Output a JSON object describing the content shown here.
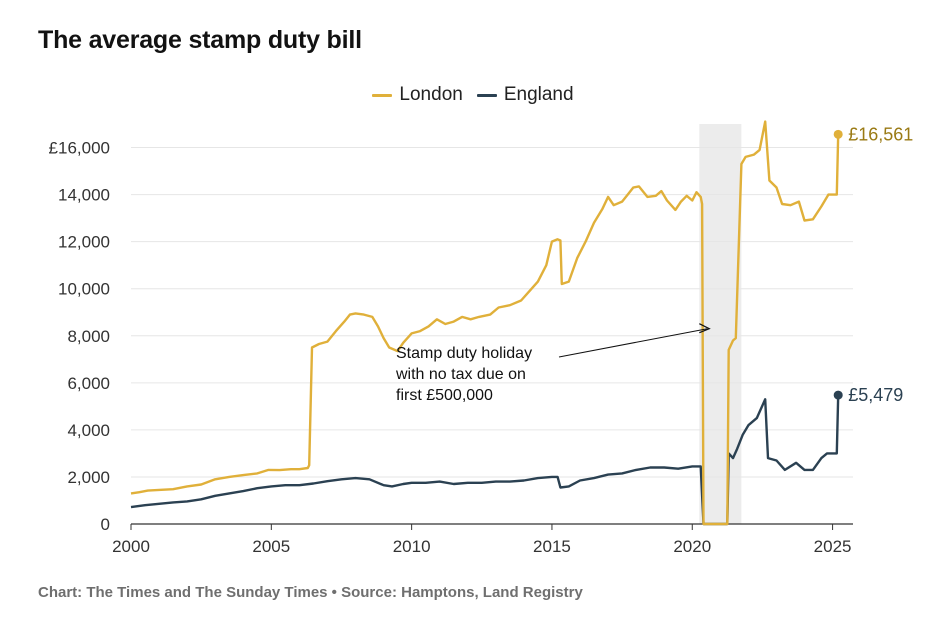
{
  "title": "The average stamp duty bill",
  "footer": "Chart: The Times and The Sunday Times • Source: Hamptons, Land Registry",
  "chart_data": {
    "type": "line",
    "title": "The average stamp duty bill",
    "xlabel": "",
    "ylabel": "",
    "xlim": [
      2000,
      2025.3
    ],
    "ylim": [
      0,
      17000
    ],
    "x_ticks": [
      2000,
      2005,
      2010,
      2015,
      2020,
      2025
    ],
    "y_ticks": [
      0,
      2000,
      4000,
      6000,
      8000,
      10000,
      12000,
      14000,
      16000
    ],
    "y_tick_labels": [
      "0",
      "2,000",
      "4,000",
      "6,000",
      "8,000",
      "10,000",
      "12,000",
      "14,000",
      "£16,000"
    ],
    "grid": "horizontal",
    "legend": "top-center",
    "highlight_band": {
      "x0": 2020.25,
      "x1": 2021.75
    },
    "annotation": {
      "lines": [
        "Stamp duty holiday",
        "with no tax due on",
        "first £500,000"
      ],
      "points_to": [
        2020.75,
        8300
      ]
    },
    "series": [
      {
        "name": "London",
        "color": "#e0b03a",
        "label_color": "#9a7a14",
        "end_label": "£16,561",
        "points": [
          [
            2000.0,
            1300
          ],
          [
            2000.3,
            1350
          ],
          [
            2000.6,
            1420
          ],
          [
            2001.0,
            1450
          ],
          [
            2001.5,
            1480
          ],
          [
            2002.0,
            1600
          ],
          [
            2002.5,
            1680
          ],
          [
            2003.0,
            1900
          ],
          [
            2003.5,
            2000
          ],
          [
            2004.0,
            2080
          ],
          [
            2004.5,
            2150
          ],
          [
            2004.9,
            2300
          ],
          [
            2005.3,
            2290
          ],
          [
            2005.7,
            2330
          ],
          [
            2006.0,
            2330
          ],
          [
            2006.3,
            2380
          ],
          [
            2006.35,
            2500
          ],
          [
            2006.45,
            7500
          ],
          [
            2006.7,
            7650
          ],
          [
            2007.0,
            7750
          ],
          [
            2007.3,
            8200
          ],
          [
            2007.6,
            8600
          ],
          [
            2007.8,
            8900
          ],
          [
            2008.0,
            8950
          ],
          [
            2008.3,
            8900
          ],
          [
            2008.6,
            8800
          ],
          [
            2008.8,
            8400
          ],
          [
            2009.0,
            7900
          ],
          [
            2009.2,
            7500
          ],
          [
            2009.5,
            7350
          ],
          [
            2009.7,
            7700
          ],
          [
            2010.0,
            8100
          ],
          [
            2010.3,
            8200
          ],
          [
            2010.6,
            8400
          ],
          [
            2010.9,
            8700
          ],
          [
            2011.2,
            8500
          ],
          [
            2011.5,
            8600
          ],
          [
            2011.8,
            8800
          ],
          [
            2012.1,
            8700
          ],
          [
            2012.4,
            8800
          ],
          [
            2012.8,
            8900
          ],
          [
            2013.1,
            9200
          ],
          [
            2013.5,
            9300
          ],
          [
            2013.9,
            9500
          ],
          [
            2014.2,
            9900
          ],
          [
            2014.5,
            10300
          ],
          [
            2014.8,
            11000
          ],
          [
            2015.0,
            12000
          ],
          [
            2015.2,
            12100
          ],
          [
            2015.3,
            12050
          ],
          [
            2015.35,
            10200
          ],
          [
            2015.6,
            10300
          ],
          [
            2015.9,
            11300
          ],
          [
            2016.2,
            12000
          ],
          [
            2016.5,
            12800
          ],
          [
            2016.8,
            13400
          ],
          [
            2017.0,
            13900
          ],
          [
            2017.2,
            13550
          ],
          [
            2017.5,
            13700
          ],
          [
            2017.7,
            14000
          ],
          [
            2017.9,
            14300
          ],
          [
            2018.1,
            14350
          ],
          [
            2018.4,
            13900
          ],
          [
            2018.7,
            13950
          ],
          [
            2018.9,
            14150
          ],
          [
            2019.1,
            13750
          ],
          [
            2019.4,
            13350
          ],
          [
            2019.6,
            13700
          ],
          [
            2019.8,
            13950
          ],
          [
            2020.0,
            13750
          ],
          [
            2020.15,
            14100
          ],
          [
            2020.3,
            13900
          ],
          [
            2020.35,
            13600
          ],
          [
            2020.4,
            0
          ],
          [
            2021.25,
            0
          ],
          [
            2021.3,
            7400
          ],
          [
            2021.45,
            7800
          ],
          [
            2021.55,
            7900
          ],
          [
            2021.75,
            15300
          ],
          [
            2021.9,
            15600
          ],
          [
            2022.2,
            15700
          ],
          [
            2022.4,
            15900
          ],
          [
            2022.6,
            17100
          ],
          [
            2022.75,
            14600
          ],
          [
            2023.0,
            14300
          ],
          [
            2023.2,
            13600
          ],
          [
            2023.5,
            13550
          ],
          [
            2023.8,
            13700
          ],
          [
            2024.0,
            12900
          ],
          [
            2024.3,
            12950
          ],
          [
            2024.6,
            13500
          ],
          [
            2024.85,
            14000
          ],
          [
            2025.0,
            14000
          ],
          [
            2025.1,
            14000
          ],
          [
            2025.15,
            14000
          ],
          [
            2025.2,
            16561
          ]
        ]
      },
      {
        "name": "England",
        "color": "#2b4152",
        "label_color": "#2b4152",
        "end_label": "£5,479",
        "points": [
          [
            2000.0,
            720
          ],
          [
            2000.5,
            800
          ],
          [
            2001.0,
            860
          ],
          [
            2001.5,
            920
          ],
          [
            2002.0,
            960
          ],
          [
            2002.5,
            1050
          ],
          [
            2003.0,
            1200
          ],
          [
            2003.5,
            1300
          ],
          [
            2004.0,
            1400
          ],
          [
            2004.5,
            1520
          ],
          [
            2005.0,
            1600
          ],
          [
            2005.5,
            1650
          ],
          [
            2006.0,
            1650
          ],
          [
            2006.5,
            1720
          ],
          [
            2007.0,
            1820
          ],
          [
            2007.5,
            1900
          ],
          [
            2008.0,
            1950
          ],
          [
            2008.5,
            1900
          ],
          [
            2009.0,
            1650
          ],
          [
            2009.3,
            1600
          ],
          [
            2009.7,
            1700
          ],
          [
            2010.0,
            1750
          ],
          [
            2010.5,
            1750
          ],
          [
            2011.0,
            1800
          ],
          [
            2011.5,
            1700
          ],
          [
            2012.0,
            1750
          ],
          [
            2012.5,
            1750
          ],
          [
            2013.0,
            1800
          ],
          [
            2013.5,
            1800
          ],
          [
            2014.0,
            1850
          ],
          [
            2014.5,
            1950
          ],
          [
            2015.0,
            2000
          ],
          [
            2015.2,
            2000
          ],
          [
            2015.3,
            1550
          ],
          [
            2015.6,
            1600
          ],
          [
            2016.0,
            1850
          ],
          [
            2016.5,
            1950
          ],
          [
            2017.0,
            2100
          ],
          [
            2017.5,
            2150
          ],
          [
            2018.0,
            2300
          ],
          [
            2018.5,
            2400
          ],
          [
            2019.0,
            2400
          ],
          [
            2019.5,
            2350
          ],
          [
            2020.0,
            2450
          ],
          [
            2020.3,
            2450
          ],
          [
            2020.4,
            0
          ],
          [
            2021.25,
            0
          ],
          [
            2021.3,
            3000
          ],
          [
            2021.45,
            2800
          ],
          [
            2021.6,
            3200
          ],
          [
            2021.8,
            3800
          ],
          [
            2022.0,
            4200
          ],
          [
            2022.3,
            4500
          ],
          [
            2022.6,
            5300
          ],
          [
            2022.7,
            2800
          ],
          [
            2023.0,
            2700
          ],
          [
            2023.3,
            2300
          ],
          [
            2023.7,
            2600
          ],
          [
            2024.0,
            2300
          ],
          [
            2024.3,
            2300
          ],
          [
            2024.6,
            2800
          ],
          [
            2024.8,
            3000
          ],
          [
            2025.0,
            3000
          ],
          [
            2025.15,
            3000
          ],
          [
            2025.2,
            5479
          ]
        ]
      }
    ]
  }
}
